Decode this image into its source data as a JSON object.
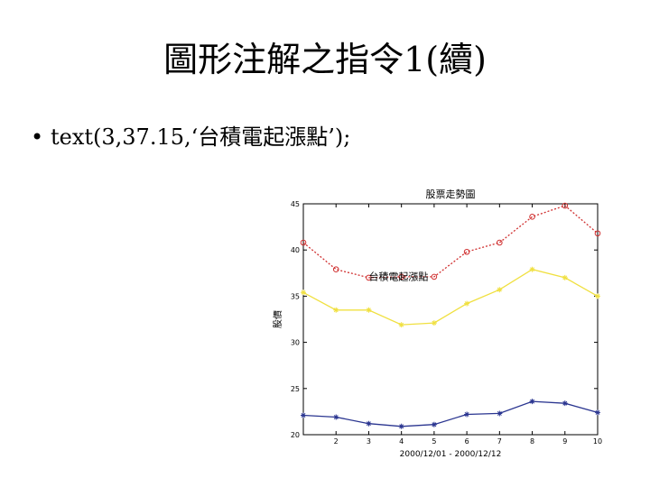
{
  "slide": {
    "title": "圖形注解之指令1(續)",
    "bullet": "•",
    "command": "text(3,37.15,‘台積電起漲點’);"
  },
  "chart_data": {
    "type": "line",
    "title": "股票走勢圖",
    "xlabel": "2000/12/01 - 2000/12/12",
    "ylabel": "股價",
    "xlim": [
      1,
      10
    ],
    "ylim": [
      20,
      45
    ],
    "grid": false,
    "x": [
      1,
      2,
      3,
      4,
      5,
      6,
      7,
      8,
      9,
      10
    ],
    "x_ticks": [
      2,
      3,
      4,
      5,
      6,
      7,
      8,
      9,
      10
    ],
    "y_ticks": [
      20,
      25,
      30,
      35,
      40,
      45
    ],
    "series": [
      {
        "values": [
          40.8,
          37.9,
          37.0,
          37.1,
          37.1,
          39.8,
          40.8,
          43.6,
          44.8,
          41.8
        ],
        "color": "#d03030",
        "marker": "circle",
        "dash": "2,2"
      },
      {
        "values": [
          35.4,
          33.5,
          33.5,
          31.9,
          32.1,
          34.2,
          35.7,
          37.9,
          37.0,
          35.0
        ],
        "color": "#f0e040",
        "marker": "star",
        "dash": ""
      },
      {
        "values": [
          22.1,
          21.9,
          21.2,
          20.9,
          21.1,
          22.2,
          22.3,
          23.6,
          23.4,
          22.4
        ],
        "color": "#2a3590",
        "marker": "star",
        "dash": ""
      }
    ],
    "annotation": {
      "text": "台積電起漲點",
      "x": 3,
      "y": 37.15
    }
  }
}
